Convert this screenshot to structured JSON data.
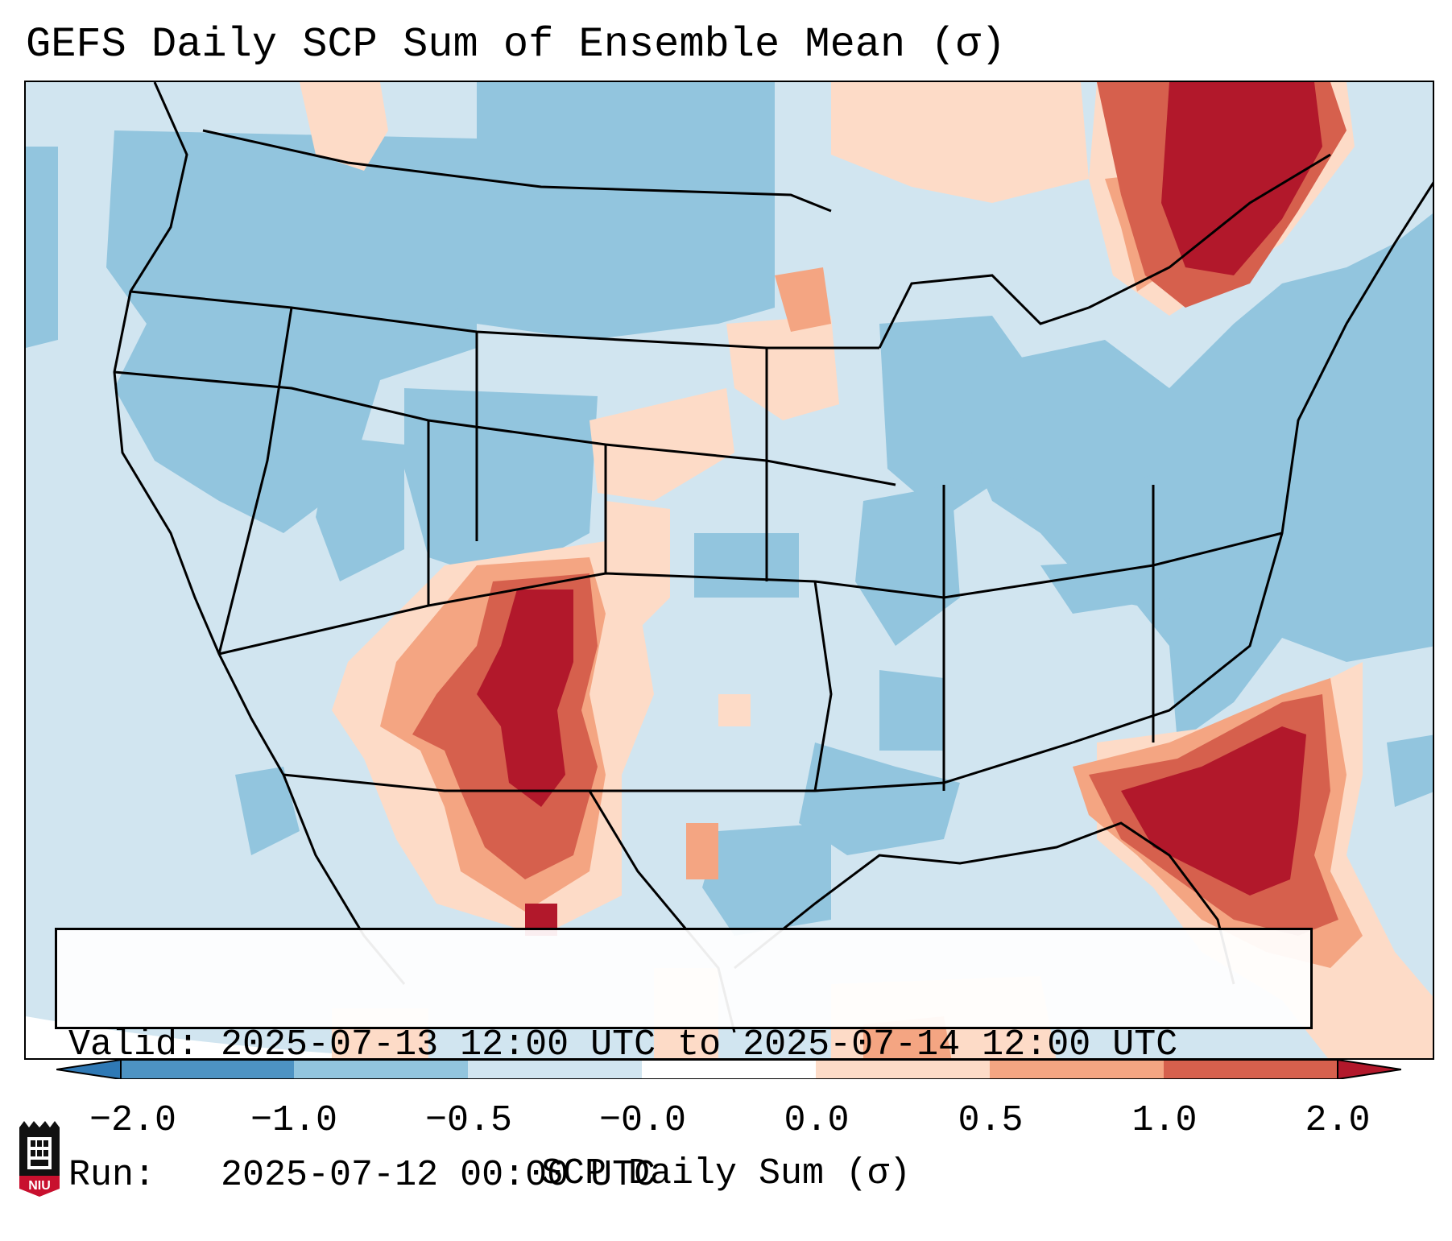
{
  "title": "GEFS Daily SCP Sum of Ensemble Mean (σ)",
  "valid_line": "Valid: 2025-07-13 12:00 UTC to 2025-07-14 12:00 UTC",
  "run_line": "Run:   2025-07-12 00:00 UTC",
  "colorbar": {
    "title": "SCP Daily Sum (σ)",
    "ticks": [
      "−2.0",
      "−1.0",
      "−0.5",
      "−0.0",
      "0.0",
      "0.5",
      "1.0",
      "2.0"
    ],
    "colors": [
      "#2f79b5",
      "#6aa8d1",
      "#92c5de",
      "#d1e5f0",
      "#fddbc7",
      "#f4a582",
      "#d6604d",
      "#b2182b"
    ],
    "extend": "both"
  },
  "logo": {
    "text": "NIU",
    "color": "#c8102e"
  },
  "legend": {
    "strong_positive_color": "#b2182b",
    "moderate_positive_color": "#d6604d",
    "weak_positive_color": "#f4a582",
    "near_zero_positive_color": "#fddbc7",
    "near_zero_negative_color": "#d1e5f0",
    "weak_negative_color": "#92c5de"
  }
}
